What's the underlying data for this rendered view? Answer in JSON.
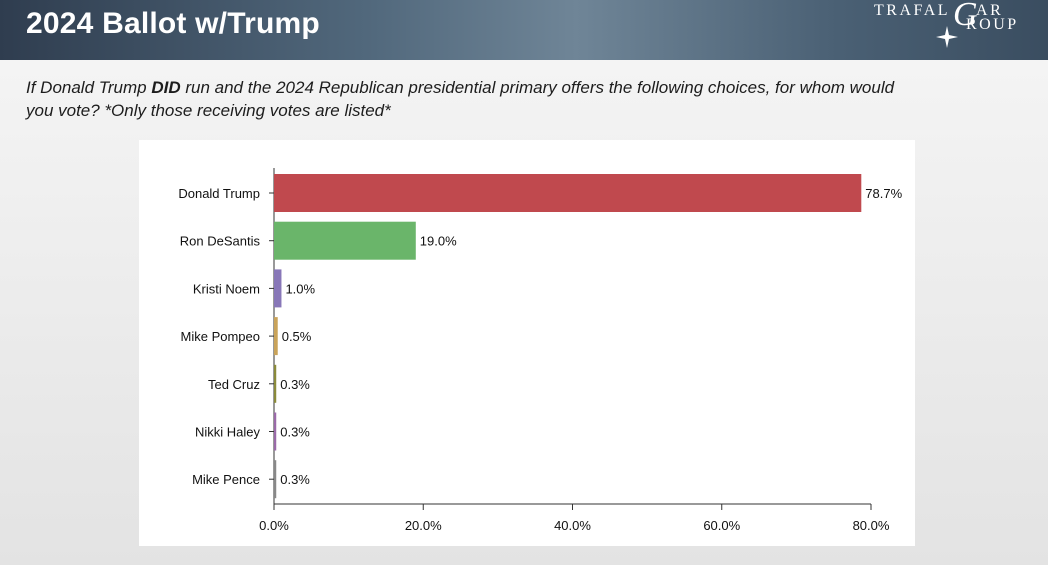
{
  "header": {
    "title": "2024 Ballot w/Trump",
    "logo": {
      "line1": "TRAFAL",
      "g_letter": "G",
      "ar": "AR",
      "line2": "ROUP"
    }
  },
  "question": {
    "part1": "If Donald Trump ",
    "emphasis": "DID",
    "part2": " run and the 2024 Republican presidential primary offers the following choices, for whom would you vote? *Only those receiving votes are listed*"
  },
  "chart_data": {
    "type": "bar",
    "orientation": "horizontal",
    "categories": [
      "Donald Trump",
      "Ron DeSantis",
      "Kristi Noem",
      "Mike Pompeo",
      "Ted Cruz",
      "Nikki Haley",
      "Mike Pence"
    ],
    "values": [
      78.7,
      19.0,
      1.0,
      0.5,
      0.3,
      0.3,
      0.3
    ],
    "value_labels": [
      "78.7%",
      "19.0%",
      "1.0%",
      "0.5%",
      "0.3%",
      "0.3%",
      "0.3%"
    ],
    "colors": [
      "#c0494e",
      "#6ab56a",
      "#8877b8",
      "#c9a35a",
      "#8a8a3a",
      "#9a6aa8",
      "#888888"
    ],
    "xlim": [
      0,
      80
    ],
    "x_ticks": [
      0,
      20,
      40,
      60,
      80
    ],
    "x_tick_labels": [
      "0.0%",
      "20.0%",
      "40.0%",
      "60.0%",
      "80.0%"
    ],
    "grid": false,
    "legend": "none"
  }
}
